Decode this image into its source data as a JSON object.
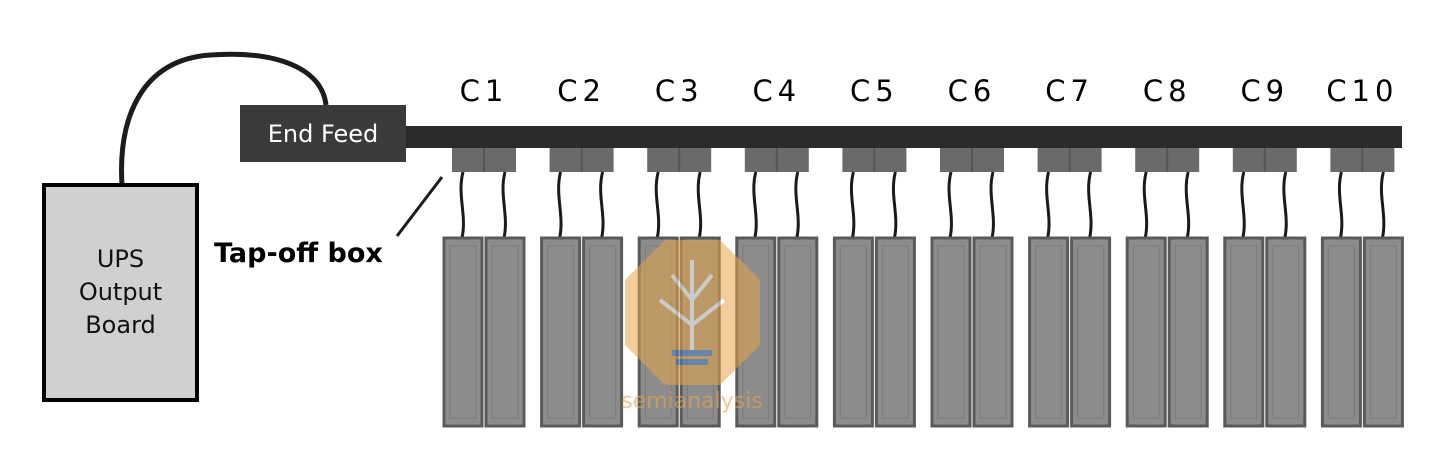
{
  "ups_board": {
    "label": "UPS\nOutput\nBoard"
  },
  "end_feed": {
    "label": "End Feed"
  },
  "tapoff_box": {
    "label": "Tap-off box"
  },
  "circuits": [
    "C1",
    "C2",
    "C3",
    "C4",
    "C5",
    "C6",
    "C7",
    "C8",
    "C9",
    "C10"
  ],
  "watermark": {
    "text": "semianalysis",
    "colors": [
      "#e8a54b",
      "#4a7fc1"
    ]
  },
  "colors": {
    "busway": "#2b2b2b",
    "tapoff": "#6a6a6a",
    "rack": "#8c8c8c",
    "rack_border": "#5a5a5a",
    "ups_fill": "#d0d0d0"
  }
}
